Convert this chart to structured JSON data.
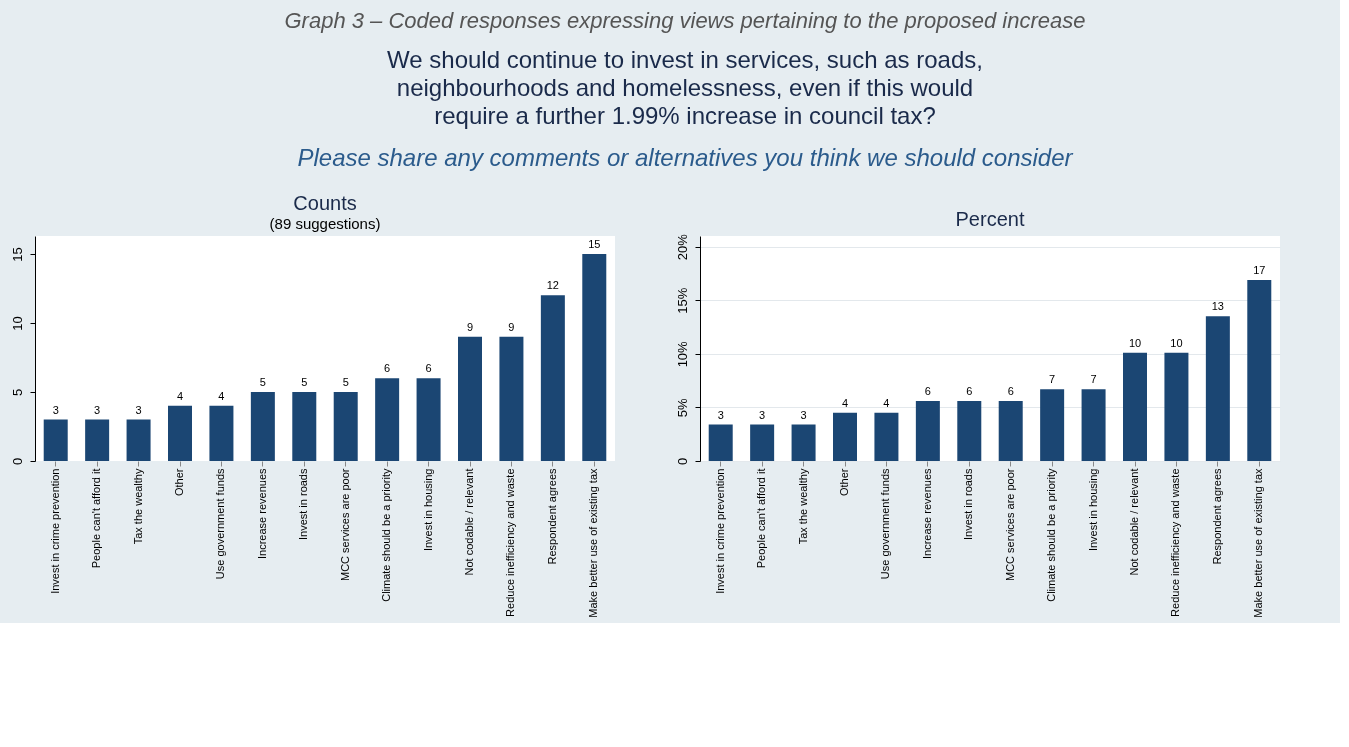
{
  "chart_data": [
    {
      "type": "bar",
      "title": "Counts",
      "subtitle": "(89 suggestions)",
      "annotations": [
        "Graph 3 – Coded responses expressing views pertaining to the proposed increase",
        "We should continue to invest in services, such as roads,",
        "neighbourhoods and homelessness, even if this would",
        "require a further 1.99% increase in council tax?",
        "Please share any comments or alternatives you think we should consider"
      ],
      "categories": [
        "Invest in crime prevention",
        "People can't afford it",
        "Tax the wealthy",
        "Other",
        "Use government funds",
        "Increase revenues",
        "Invest in roads",
        "MCC services are poor",
        "Climate should be a priority",
        "Invest in housing",
        "Not codable / relevant",
        "Reduce inefficiency and waste",
        "Respondent agrees",
        "Make better use of existing tax"
      ],
      "values": [
        3,
        3,
        3,
        4,
        4,
        5,
        5,
        5,
        6,
        6,
        9,
        9,
        12,
        15
      ],
      "color": "#1b4673",
      "data_labels": true,
      "ylim": [
        0,
        16.3
      ],
      "yticks": [
        0,
        5,
        10,
        15
      ],
      "grid": false
    },
    {
      "type": "bar",
      "title": "Percent",
      "categories": [
        "Invest in crime prevention",
        "People can't afford it",
        "Tax the wealthy",
        "Other",
        "Use government funds",
        "Increase revenues",
        "Invest in roads",
        "MCC services are poor",
        "Climate should be a priority",
        "Invest in housing",
        "Not codable / relevant",
        "Reduce inefficiency and waste",
        "Respondent agrees",
        "Make better use of existing tax"
      ],
      "values": [
        3.4,
        3.4,
        3.4,
        4.5,
        4.5,
        5.6,
        5.6,
        5.6,
        6.7,
        6.7,
        10.1,
        10.1,
        13.5,
        16.9
      ],
      "value_labels": [
        "3",
        "3",
        "3",
        "4",
        "4",
        "6",
        "6",
        "6",
        "7",
        "7",
        "10",
        "10",
        "13",
        "17"
      ],
      "color": "#1b4673",
      "ylim": [
        0,
        21
      ],
      "yticks": [
        0,
        {
          "value": 5,
          "label": "5%"
        },
        {
          "value": 10,
          "label": "10%"
        },
        {
          "value": 15,
          "label": "15%"
        },
        {
          "value": 20,
          "label": "20%"
        }
      ],
      "grid": "y"
    }
  ]
}
